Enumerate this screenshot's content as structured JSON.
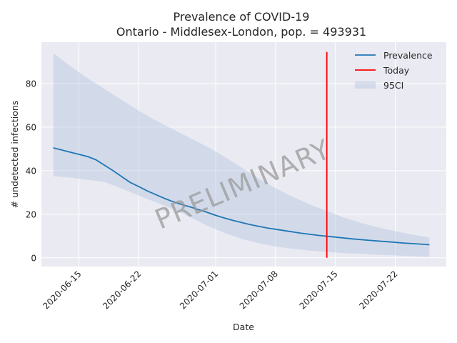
{
  "chart_data": {
    "type": "line",
    "title": "Prevalence of COVID-19",
    "subtitle": "Ontario - Middlesex-London, pop. = 493931",
    "xlabel": "Date",
    "ylabel": "# undetected infections",
    "ylim": [
      -4,
      99
    ],
    "yticks": [
      0,
      20,
      40,
      60,
      80
    ],
    "xtick_labels": [
      "2020-06-15",
      "2020-06-22",
      "2020-07-01",
      "2020-07-08",
      "2020-07-15",
      "2020-07-22"
    ],
    "grid": true,
    "legend_position": "top-right",
    "watermark": "PRELIMINARY",
    "series": [
      {
        "name": "Prevalence",
        "color": "#1f77b4",
        "x": [
          "2020-06-12",
          "2020-06-14",
          "2020-06-16",
          "2020-06-17",
          "2020-06-18",
          "2020-06-19",
          "2020-06-20",
          "2020-06-21",
          "2020-06-22",
          "2020-06-23",
          "2020-06-24",
          "2020-06-25",
          "2020-06-26",
          "2020-06-27",
          "2020-06-28",
          "2020-06-29",
          "2020-06-30",
          "2020-07-01",
          "2020-07-02",
          "2020-07-03",
          "2020-07-05",
          "2020-07-07",
          "2020-07-09",
          "2020-07-11",
          "2020-07-13",
          "2020-07-15",
          "2020-07-17",
          "2020-07-19",
          "2020-07-21",
          "2020-07-23",
          "2020-07-25",
          "2020-07-26"
        ],
        "values": [
          50.5,
          48.5,
          46.5,
          45,
          42.5,
          40,
          37.3,
          34.6,
          32.7,
          30.7,
          29,
          27.3,
          25.8,
          24.5,
          23.4,
          22.1,
          20.9,
          19.5,
          18.3,
          17.2,
          15.3,
          13.7,
          12.5,
          11.3,
          10.3,
          9.5,
          8.7,
          8.0,
          7.4,
          6.8,
          6.3,
          6.0
        ]
      },
      {
        "name": "Today",
        "color": "#ff0000",
        "x": [
          "2020-07-14",
          "2020-07-14"
        ],
        "values": [
          0,
          94.5
        ]
      }
    ],
    "band": {
      "name": "95CI",
      "color": "#b0c4de",
      "x": [
        "2020-06-12",
        "2020-06-14",
        "2020-06-16",
        "2020-06-18",
        "2020-06-20",
        "2020-06-22",
        "2020-06-24",
        "2020-06-26",
        "2020-06-28",
        "2020-06-30",
        "2020-07-02",
        "2020-07-04",
        "2020-07-06",
        "2020-07-08",
        "2020-07-10",
        "2020-07-12",
        "2020-07-14",
        "2020-07-16",
        "2020-07-18",
        "2020-07-20",
        "2020-07-22",
        "2020-07-24",
        "2020-07-26"
      ],
      "upper": [
        94,
        88,
        82.5,
        77.5,
        72.5,
        67.5,
        63,
        59,
        55,
        51,
        46.5,
        41.5,
        36.5,
        32,
        28,
        24.5,
        21.5,
        18.5,
        16,
        14,
        12.2,
        10.7,
        9.3
      ],
      "lower": [
        37.5,
        36.8,
        35.8,
        34.8,
        31.8,
        28.5,
        25.5,
        22.3,
        18.7,
        14.7,
        11.5,
        8.7,
        6.7,
        5.2,
        4.1,
        3.3,
        2.7,
        2.2,
        1.8,
        1.4,
        1.1,
        0.8,
        0.5
      ]
    }
  }
}
